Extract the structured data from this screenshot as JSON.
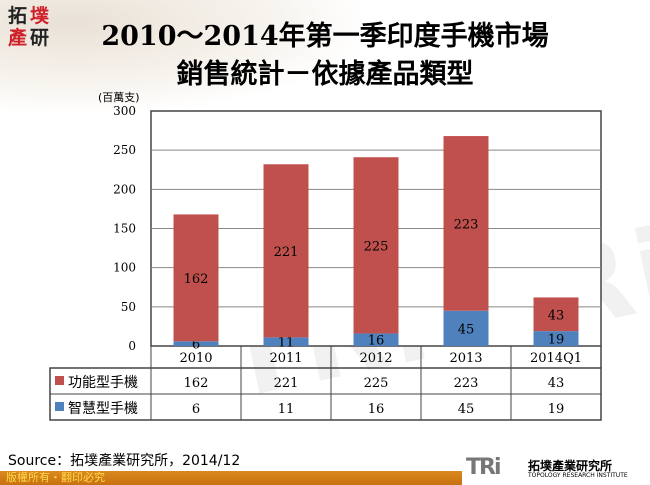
{
  "logo": {
    "text": [
      "拓",
      "墣",
      "產",
      "研"
    ]
  },
  "title": {
    "line1": "2010～2014年第一季印度手機市場",
    "line2": "銷售統計－依據產品類型"
  },
  "chart_data": {
    "type": "bar",
    "stacked": true,
    "title": "2010～2014年第一季印度手機市場 銷售統計－依據產品類型",
    "ylabel": "(百萬支)",
    "ylim": [
      0,
      300
    ],
    "yticks": [
      0,
      50,
      100,
      150,
      200,
      250,
      300
    ],
    "grid": true,
    "categories": [
      "2010",
      "2011",
      "2012",
      "2013",
      "2014Q1"
    ],
    "series": [
      {
        "name": "智慧型手機",
        "color": "#4f81bd",
        "values": [
          6,
          11,
          16,
          45,
          19
        ]
      },
      {
        "name": "功能型手機",
        "color": "#c0504d",
        "values": [
          162,
          221,
          225,
          223,
          43
        ]
      }
    ],
    "legend": "table-below"
  },
  "table": {
    "rows": [
      {
        "name": "功能型手機",
        "color": "#c0504d",
        "values": [
          "162",
          "221",
          "225",
          "223",
          "43"
        ]
      },
      {
        "name": "智慧型手機",
        "color": "#4f81bd",
        "values": [
          "6",
          "11",
          "16",
          "45",
          "19"
        ]
      }
    ]
  },
  "source": "Source：拓墣產業研究所，2014/12",
  "footer": "版權所有・翻印必究",
  "brand": {
    "mark": "TRi",
    "name_cn": "拓墣產業研究所",
    "name_en": "TOPOLOGY RESEARCH INSTITUTE"
  },
  "watermark": "TRi TRi"
}
